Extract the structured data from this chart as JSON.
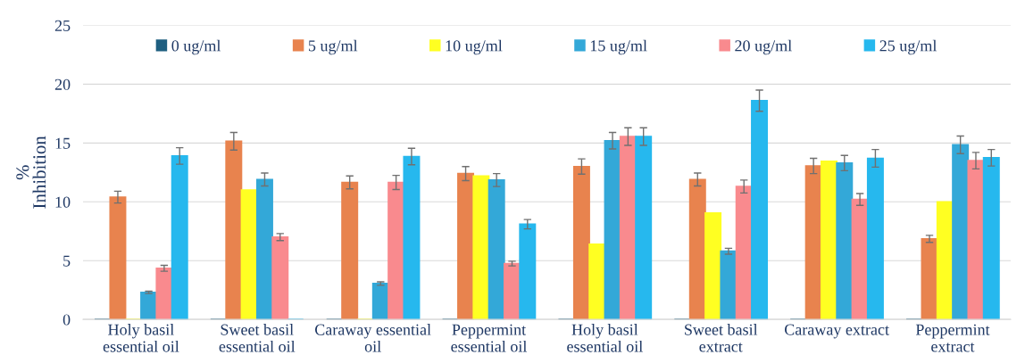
{
  "chart_data": {
    "type": "bar",
    "ylabel": "%\nInhibition",
    "categories": [
      "Holy basil\nessential oil",
      "Sweet basil\nessential oil",
      "Caraway essential\noil",
      "Peppermint\nessential oil",
      "Holy basil\nessential oil",
      "Sweet basil\nextract",
      "Caraway extract",
      "Peppermint\nextract"
    ],
    "series": [
      {
        "name": "0 ug/ml",
        "color": "#1f5f80",
        "values": [
          0,
          0,
          0,
          0,
          0,
          0,
          0,
          0
        ]
      },
      {
        "name": "5 ug/ml",
        "color": "#e8834e",
        "values": [
          10.4,
          15.15,
          11.65,
          12.4,
          13.0,
          11.9,
          13.05,
          6.85
        ],
        "errors": [
          0.5,
          0.75,
          0.55,
          0.6,
          0.65,
          0.55,
          0.65,
          0.3
        ]
      },
      {
        "name": "10 ug/ml",
        "color": "#ffff22",
        "values": [
          0,
          11.0,
          0,
          12.2,
          6.4,
          9.05,
          13.45,
          10.0
        ]
      },
      {
        "name": "15 ug/ml",
        "color": "#33a8d8",
        "values": [
          2.3,
          11.9,
          3.05,
          11.85,
          15.2,
          5.8,
          13.3,
          14.85
        ],
        "errors": [
          0.1,
          0.55,
          0.15,
          0.55,
          0.7,
          0.25,
          0.65,
          0.75
        ]
      },
      {
        "name": "20 ug/ml",
        "color": "#f98a8e",
        "values": [
          4.35,
          7.0,
          11.65,
          4.75,
          15.55,
          11.3,
          10.2,
          13.5
        ],
        "errors": [
          0.25,
          0.3,
          0.6,
          0.2,
          0.75,
          0.55,
          0.5,
          0.7
        ]
      },
      {
        "name": "25 ug/ml",
        "color": "#26b8ee",
        "values": [
          13.9,
          0,
          13.85,
          8.1,
          15.55,
          18.6,
          13.7,
          13.75
        ],
        "errors": [
          0.7,
          null,
          0.7,
          0.4,
          0.75,
          0.9,
          0.75,
          0.7
        ]
      }
    ],
    "ylim": [
      0,
      25
    ],
    "yticks": [
      0,
      5,
      10,
      15,
      20,
      25
    ],
    "grid": "y",
    "legend": "top"
  }
}
